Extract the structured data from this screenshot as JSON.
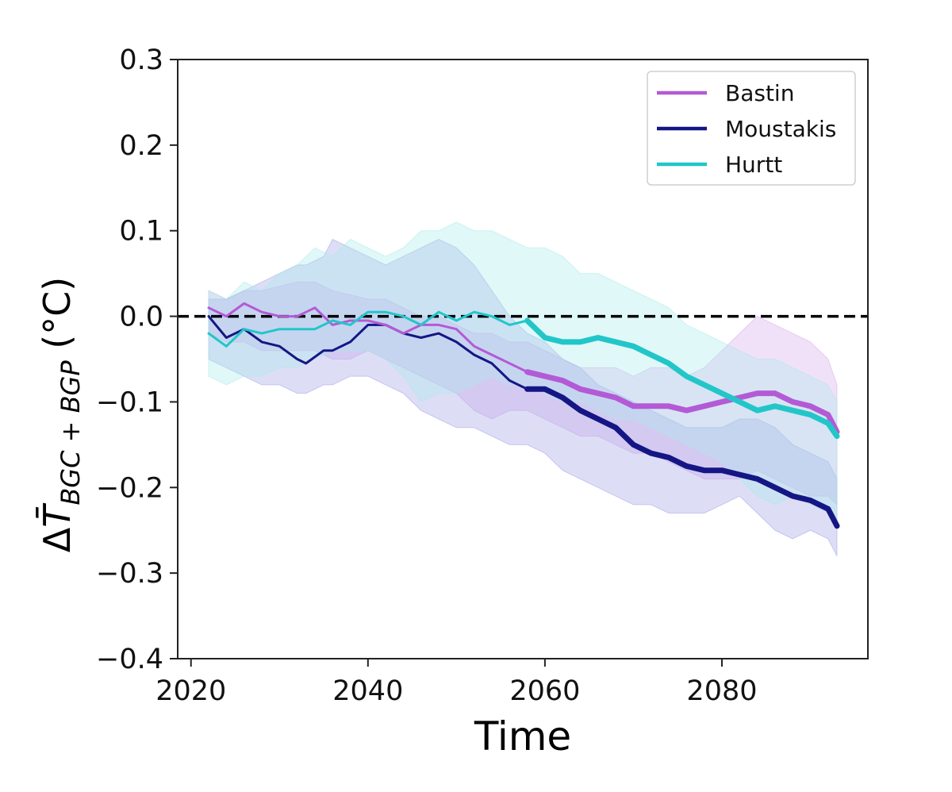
{
  "chart_data": {
    "type": "line",
    "title": "",
    "xlabel": "Time",
    "ylabel": {
      "delta": "Δ",
      "symbol": "T̄",
      "subscript": "BGC + BGP",
      "unit": " (°C)"
    },
    "xlim": [
      2018.5,
      2096.5
    ],
    "ylim": [
      -0.4,
      0.3
    ],
    "x_ticks": [
      2020,
      2040,
      2060,
      2080
    ],
    "x_tick_labels": [
      "2020",
      "2040",
      "2060",
      "2080"
    ],
    "y_ticks": [
      0.3,
      0.2,
      0.1,
      0.0,
      -0.1,
      -0.2,
      -0.3,
      -0.4
    ],
    "y_tick_labels": [
      "0.3",
      "0.2",
      "0.1",
      "0.0",
      "−0.1",
      "−0.2",
      "−0.3",
      "−0.4"
    ],
    "reference_line": {
      "y": 0,
      "style": "dashed",
      "color": "#000000"
    },
    "legend": {
      "position": "top-right",
      "entries": [
        "Bastin",
        "Moustakis",
        "Hurtt"
      ]
    },
    "series": [
      {
        "name": "Bastin",
        "color": "#b35ad6",
        "band_color": "#d6a8ea",
        "x": [
          2022,
          2024,
          2026,
          2028,
          2030,
          2032,
          2034,
          2036,
          2038,
          2040,
          2042,
          2044,
          2046,
          2048,
          2050,
          2052,
          2054,
          2056,
          2058,
          2060,
          2062,
          2064,
          2066,
          2068,
          2070,
          2072,
          2074,
          2076,
          2078,
          2080,
          2082,
          2084,
          2086,
          2088,
          2090,
          2092,
          2093
        ],
        "y": [
          0.01,
          0.0,
          0.015,
          0.005,
          0.0,
          0.0,
          0.01,
          -0.01,
          -0.005,
          -0.005,
          -0.01,
          -0.02,
          -0.01,
          -0.01,
          -0.015,
          -0.035,
          -0.045,
          -0.055,
          -0.065,
          -0.07,
          -0.075,
          -0.085,
          -0.09,
          -0.095,
          -0.105,
          -0.105,
          -0.105,
          -0.11,
          -0.105,
          -0.1,
          -0.095,
          -0.09,
          -0.09,
          -0.1,
          -0.105,
          -0.115,
          -0.135
        ],
        "upper": [
          0.03,
          0.02,
          0.03,
          0.03,
          0.035,
          0.04,
          0.04,
          0.03,
          0.025,
          0.02,
          0.02,
          0.01,
          0.0,
          0.0,
          -0.01,
          -0.02,
          -0.02,
          -0.03,
          -0.03,
          -0.04,
          -0.05,
          -0.06,
          -0.06,
          -0.06,
          -0.07,
          -0.06,
          -0.06,
          -0.07,
          -0.06,
          -0.04,
          -0.02,
          0.0,
          -0.01,
          -0.02,
          -0.03,
          -0.05,
          -0.08
        ],
        "lower": [
          -0.02,
          -0.03,
          -0.03,
          -0.04,
          -0.04,
          -0.04,
          -0.04,
          -0.05,
          -0.05,
          -0.04,
          -0.05,
          -0.06,
          -0.07,
          -0.08,
          -0.09,
          -0.11,
          -0.12,
          -0.11,
          -0.11,
          -0.12,
          -0.13,
          -0.14,
          -0.14,
          -0.15,
          -0.16,
          -0.16,
          -0.17,
          -0.18,
          -0.19,
          -0.19,
          -0.19,
          -0.18,
          -0.19,
          -0.2,
          -0.21,
          -0.21,
          -0.22
        ]
      },
      {
        "name": "Moustakis",
        "color": "#151685",
        "band_color": "#9ea0e6",
        "x": [
          2022,
          2024,
          2026,
          2028,
          2030,
          2032,
          2033,
          2035,
          2036,
          2038,
          2040,
          2042,
          2044,
          2046,
          2048,
          2050,
          2052,
          2054,
          2056,
          2058,
          2060,
          2062,
          2064,
          2066,
          2068,
          2070,
          2072,
          2074,
          2076,
          2078,
          2080,
          2082,
          2084,
          2086,
          2088,
          2090,
          2092,
          2093
        ],
        "y": [
          0.0,
          -0.025,
          -0.015,
          -0.03,
          -0.035,
          -0.05,
          -0.055,
          -0.04,
          -0.04,
          -0.03,
          -0.01,
          -0.01,
          -0.02,
          -0.025,
          -0.02,
          -0.03,
          -0.045,
          -0.055,
          -0.075,
          -0.085,
          -0.085,
          -0.095,
          -0.11,
          -0.12,
          -0.13,
          -0.15,
          -0.16,
          -0.165,
          -0.175,
          -0.18,
          -0.18,
          -0.185,
          -0.19,
          -0.2,
          -0.21,
          -0.215,
          -0.225,
          -0.245
        ],
        "upper": [
          0.02,
          0.02,
          0.03,
          0.04,
          0.05,
          0.06,
          0.06,
          0.07,
          0.09,
          0.08,
          0.07,
          0.06,
          0.07,
          0.08,
          0.09,
          0.08,
          0.06,
          0.03,
          0.0,
          -0.02,
          -0.03,
          -0.05,
          -0.06,
          -0.08,
          -0.09,
          -0.1,
          -0.11,
          -0.12,
          -0.13,
          -0.13,
          -0.13,
          -0.12,
          -0.12,
          -0.13,
          -0.15,
          -0.16,
          -0.17,
          -0.19
        ],
        "lower": [
          -0.05,
          -0.06,
          -0.07,
          -0.08,
          -0.08,
          -0.09,
          -0.09,
          -0.08,
          -0.08,
          -0.07,
          -0.07,
          -0.08,
          -0.09,
          -0.11,
          -0.12,
          -0.13,
          -0.13,
          -0.14,
          -0.15,
          -0.15,
          -0.16,
          -0.18,
          -0.19,
          -0.2,
          -0.21,
          -0.22,
          -0.22,
          -0.23,
          -0.23,
          -0.23,
          -0.22,
          -0.21,
          -0.23,
          -0.25,
          -0.26,
          -0.25,
          -0.26,
          -0.28
        ]
      },
      {
        "name": "Hurtt",
        "color": "#22c6c9",
        "band_color": "#a8eaea",
        "x": [
          2022,
          2024,
          2026,
          2028,
          2030,
          2032,
          2034,
          2036,
          2038,
          2040,
          2042,
          2044,
          2046,
          2048,
          2050,
          2052,
          2054,
          2056,
          2058,
          2060,
          2062,
          2064,
          2066,
          2068,
          2070,
          2072,
          2074,
          2076,
          2078,
          2080,
          2082,
          2084,
          2086,
          2088,
          2090,
          2092,
          2093
        ],
        "y": [
          -0.02,
          -0.035,
          -0.015,
          -0.02,
          -0.015,
          -0.015,
          -0.015,
          -0.005,
          -0.01,
          0.005,
          0.005,
          0.0,
          -0.01,
          0.005,
          -0.005,
          0.005,
          0.0,
          -0.01,
          -0.005,
          -0.025,
          -0.03,
          -0.03,
          -0.025,
          -0.03,
          -0.035,
          -0.045,
          -0.055,
          -0.07,
          -0.08,
          -0.09,
          -0.1,
          -0.11,
          -0.105,
          -0.11,
          -0.115,
          -0.125,
          -0.14
        ],
        "upper": [
          0.03,
          0.02,
          0.04,
          0.03,
          0.05,
          0.06,
          0.08,
          0.07,
          0.09,
          0.08,
          0.07,
          0.08,
          0.1,
          0.1,
          0.11,
          0.1,
          0.1,
          0.09,
          0.08,
          0.08,
          0.07,
          0.05,
          0.05,
          0.04,
          0.03,
          0.02,
          0.01,
          -0.01,
          -0.02,
          -0.03,
          -0.04,
          -0.05,
          -0.05,
          -0.06,
          -0.07,
          -0.08,
          -0.1
        ],
        "lower": [
          -0.07,
          -0.08,
          -0.07,
          -0.07,
          -0.06,
          -0.06,
          -0.05,
          -0.04,
          -0.04,
          -0.04,
          -0.05,
          -0.07,
          -0.1,
          -0.09,
          -0.09,
          -0.08,
          -0.07,
          -0.08,
          -0.08,
          -0.09,
          -0.1,
          -0.1,
          -0.11,
          -0.12,
          -0.12,
          -0.13,
          -0.14,
          -0.15,
          -0.16,
          -0.17,
          -0.19,
          -0.21,
          -0.22,
          -0.21,
          -0.22,
          -0.23,
          -0.25
        ]
      }
    ]
  }
}
